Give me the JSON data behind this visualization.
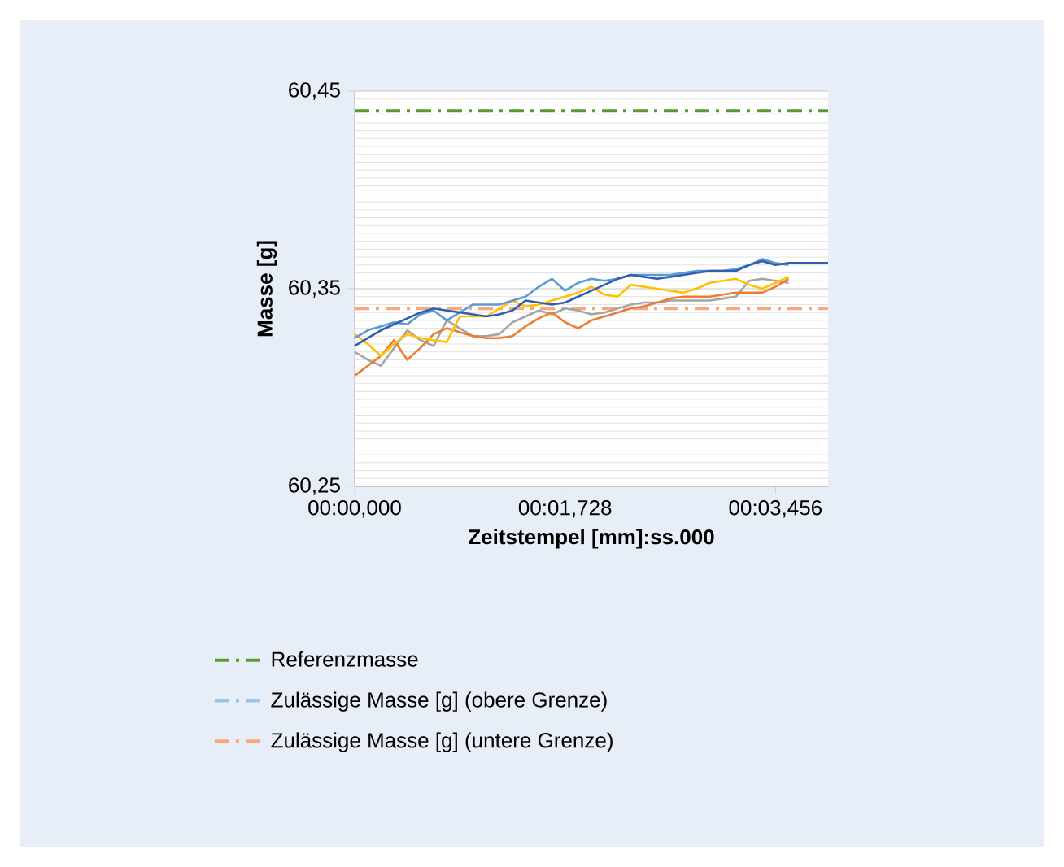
{
  "chart_data": {
    "type": "line",
    "xlabel": "Zeitstempel [mm]:ss.000",
    "ylabel": "Masse [g]",
    "categories": [
      "00:00,000",
      null,
      null,
      null,
      null,
      null,
      null,
      null,
      null,
      null,
      null,
      null,
      null,
      null,
      null,
      null,
      "00:01,728",
      null,
      null,
      null,
      null,
      null,
      null,
      null,
      null,
      null,
      null,
      null,
      null,
      null,
      null,
      null,
      "00:03,456",
      null,
      null,
      null,
      null
    ],
    "ylim": [
      60.25,
      60.45
    ],
    "yticks": [
      {
        "value": 60.25,
        "label": "60,25"
      },
      {
        "value": 60.35,
        "label": "60,35"
      },
      {
        "value": 60.45,
        "label": "60,45"
      }
    ],
    "grid": "y",
    "legend": "bottom",
    "marker": "none",
    "line_style": "solid",
    "series": [
      {
        "name": "Referenzmasse",
        "color": "#5b9a32",
        "line_style": "dashed",
        "values": [
          60.44,
          60.44,
          60.44,
          60.44,
          60.44,
          60.44,
          60.44,
          60.44,
          60.44,
          60.44,
          60.44,
          60.44,
          60.44,
          60.44,
          60.44,
          60.44,
          60.44,
          60.44,
          60.44,
          60.44,
          60.44,
          60.44,
          60.44,
          60.44,
          60.44,
          60.44,
          60.44,
          60.44,
          60.44,
          60.44,
          60.44,
          60.44,
          60.44,
          60.44,
          60.44,
          60.44,
          60.44
        ]
      },
      {
        "name": "Zulässige Masse [g] (obere Grenze)",
        "color": "#9dc3e6",
        "line_style": "dashed",
        "values": [
          null,
          null,
          null,
          null,
          null,
          null,
          null,
          null,
          null,
          null,
          null,
          null,
          null,
          null,
          null,
          null,
          null,
          null,
          null,
          null,
          null,
          null,
          null,
          null,
          null,
          null,
          null,
          null,
          null,
          null,
          null,
          null,
          null,
          null,
          null,
          null,
          null
        ]
      },
      {
        "name": "Zulässige Masse [g] (untere Grenze)",
        "color": "#f8a77f",
        "line_style": "dashed",
        "values": [
          60.34,
          60.34,
          60.34,
          60.34,
          60.34,
          60.34,
          60.34,
          60.34,
          60.34,
          60.34,
          60.34,
          60.34,
          60.34,
          60.34,
          60.34,
          60.34,
          60.34,
          60.34,
          60.34,
          60.34,
          60.34,
          60.34,
          60.34,
          60.34,
          60.34,
          60.34,
          60.34,
          60.34,
          60.34,
          60.34,
          60.34,
          60.34,
          60.34,
          60.34,
          60.34,
          60.34,
          60.34
        ]
      },
      {
        "color": "#a5a5a5",
        "values": [
          60.318,
          60.314,
          60.311,
          60.32,
          60.329,
          60.324,
          60.321,
          60.334,
          60.33,
          60.326,
          60.326,
          60.327,
          60.333,
          60.336,
          60.339,
          60.337,
          60.34,
          60.339,
          60.337,
          60.338,
          60.34,
          60.342,
          60.343,
          60.343,
          60.344,
          60.344,
          60.344,
          60.344,
          60.345,
          60.346,
          60.354,
          60.355,
          60.354,
          60.353,
          null,
          null,
          null
        ]
      },
      {
        "color": "#ed7d31",
        "values": [
          60.306,
          60.311,
          60.316,
          60.324,
          60.314,
          60.32,
          60.327,
          60.33,
          60.328,
          60.326,
          60.325,
          60.325,
          60.326,
          60.331,
          60.335,
          60.338,
          60.333,
          60.33,
          60.334,
          60.336,
          60.338,
          60.34,
          60.341,
          60.343,
          60.345,
          60.346,
          60.346,
          60.346,
          60.347,
          60.348,
          60.348,
          60.348,
          60.351,
          60.355,
          null,
          null,
          null
        ]
      },
      {
        "color": "#ffc000",
        "values": [
          60.327,
          60.322,
          60.316,
          60.322,
          60.327,
          60.325,
          60.324,
          60.323,
          60.336,
          60.336,
          60.336,
          60.34,
          60.344,
          60.341,
          60.342,
          60.344,
          60.346,
          60.348,
          60.351,
          60.347,
          60.346,
          60.352,
          60.351,
          60.35,
          60.349,
          60.348,
          60.35,
          60.353,
          60.354,
          60.355,
          60.352,
          60.35,
          60.353,
          60.356,
          null,
          null,
          null
        ]
      },
      {
        "color": "#5b9bd5",
        "values": [
          60.325,
          60.329,
          60.331,
          60.333,
          60.332,
          60.337,
          60.339,
          60.334,
          60.338,
          60.342,
          60.342,
          60.342,
          60.344,
          60.346,
          60.351,
          60.355,
          60.349,
          60.353,
          60.355,
          60.354,
          60.355,
          60.357,
          60.357,
          60.357,
          60.357,
          60.358,
          60.359,
          60.359,
          60.359,
          60.36,
          60.362,
          60.365,
          60.363,
          60.362,
          null,
          null,
          null
        ]
      },
      {
        "color": "#2f5fae",
        "values": [
          60.321,
          60.325,
          60.329,
          60.332,
          60.335,
          60.338,
          60.34,
          60.339,
          60.338,
          60.337,
          60.336,
          60.337,
          60.339,
          60.344,
          60.343,
          60.342,
          60.343,
          60.346,
          60.349,
          60.352,
          60.355,
          60.357,
          60.356,
          60.355,
          60.356,
          60.357,
          60.358,
          60.359,
          60.359,
          60.359,
          60.362,
          60.364,
          60.362,
          60.363,
          60.363,
          60.363,
          60.363
        ]
      }
    ]
  }
}
